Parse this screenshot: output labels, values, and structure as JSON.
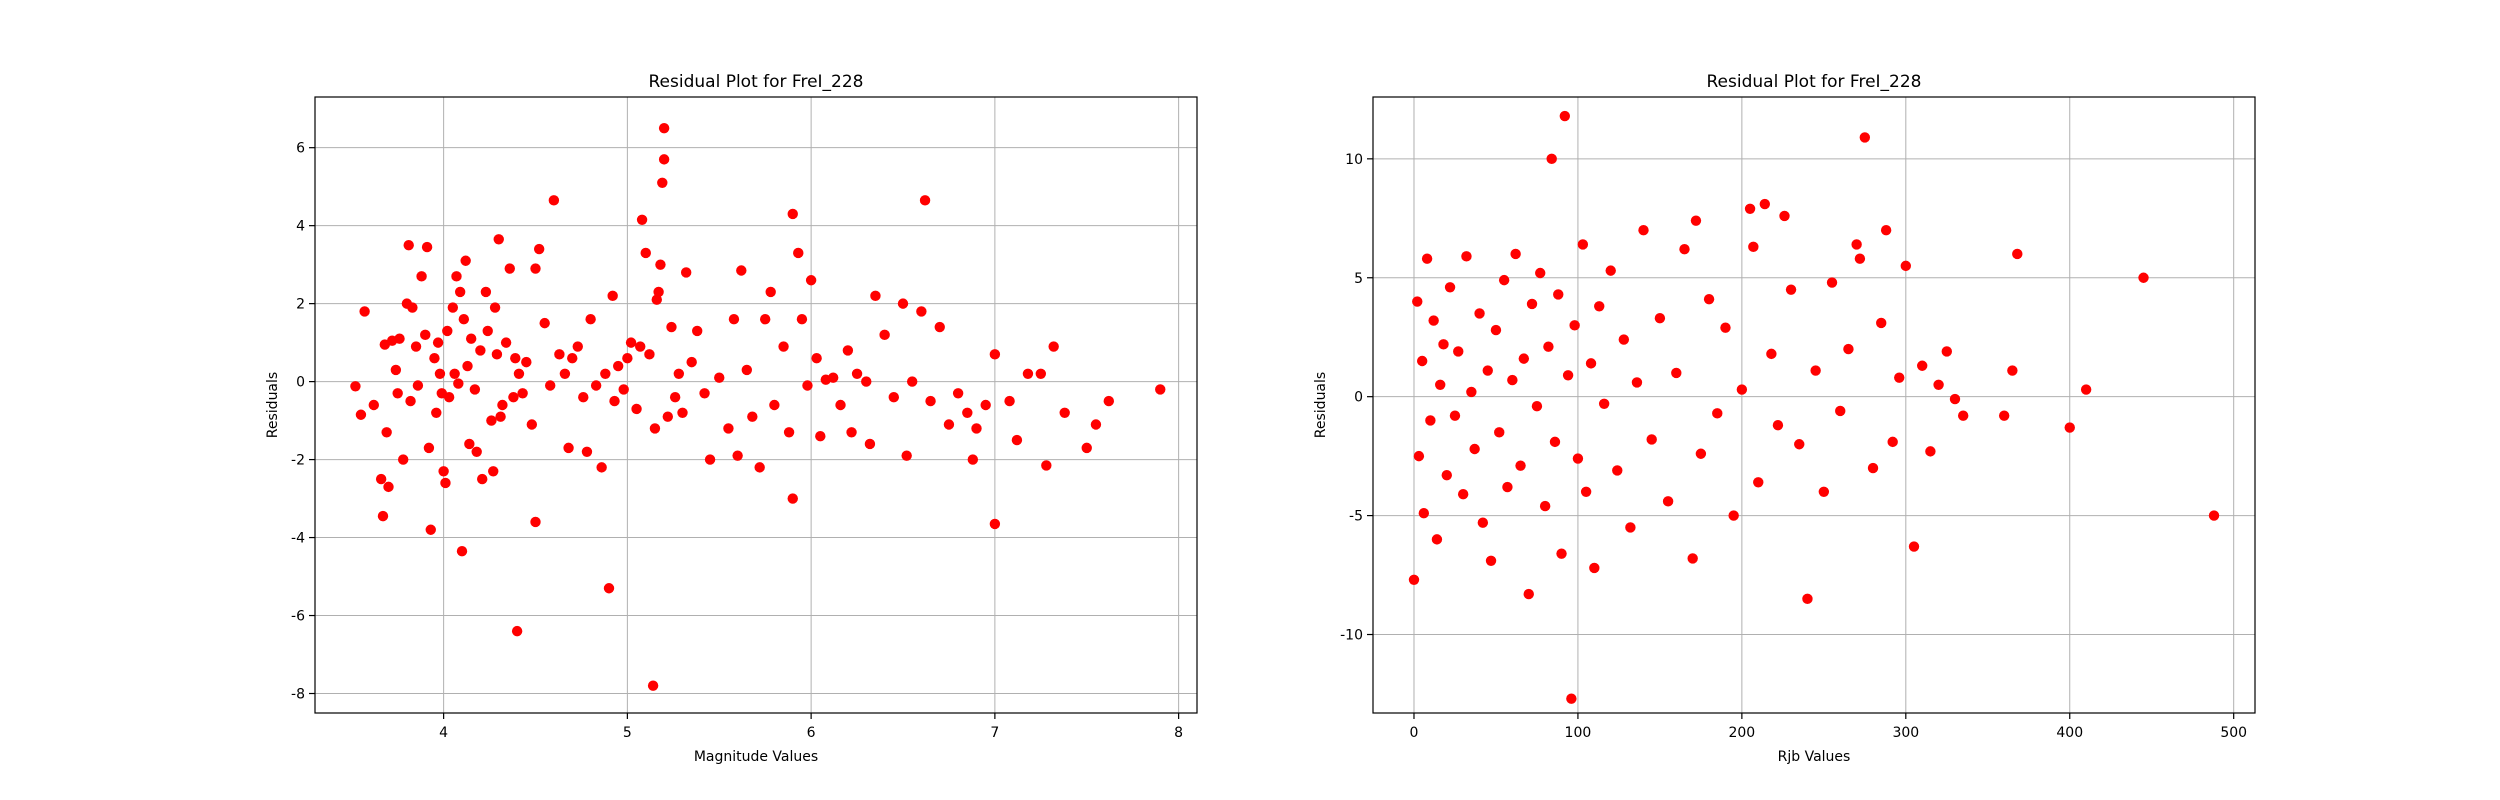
{
  "chart_data": [
    {
      "type": "scatter",
      "title": "Residual Plot for FreI_228",
      "xlabel": "Magnitude Values",
      "ylabel": "Residuals",
      "xlim": [
        3.3,
        8.1
      ],
      "ylim": [
        -8.5,
        7.3
      ],
      "xticks": [
        4,
        5,
        6,
        7,
        8
      ],
      "yticks": [
        -8,
        -6,
        -4,
        -2,
        0,
        2,
        4,
        6
      ],
      "grid": true,
      "color": "#ff0000",
      "points": [
        [
          3.52,
          -0.12
        ],
        [
          3.55,
          -0.85
        ],
        [
          3.57,
          1.8
        ],
        [
          3.62,
          -0.6
        ],
        [
          3.66,
          -2.5
        ],
        [
          3.67,
          -3.45
        ],
        [
          3.68,
          0.95
        ],
        [
          3.69,
          -1.3
        ],
        [
          3.7,
          -2.7
        ],
        [
          3.72,
          1.05
        ],
        [
          3.74,
          0.3
        ],
        [
          3.75,
          -0.3
        ],
        [
          3.76,
          1.1
        ],
        [
          3.78,
          -2.0
        ],
        [
          3.8,
          2.0
        ],
        [
          3.81,
          3.5
        ],
        [
          3.82,
          -0.5
        ],
        [
          3.83,
          1.9
        ],
        [
          3.85,
          0.9
        ],
        [
          3.86,
          -0.1
        ],
        [
          3.88,
          2.7
        ],
        [
          3.9,
          1.2
        ],
        [
          3.91,
          3.45
        ],
        [
          3.92,
          -1.7
        ],
        [
          3.93,
          -3.8
        ],
        [
          3.95,
          0.6
        ],
        [
          3.96,
          -0.8
        ],
        [
          3.97,
          1.0
        ],
        [
          3.98,
          0.2
        ],
        [
          3.99,
          -0.3
        ],
        [
          4.0,
          -2.3
        ],
        [
          4.01,
          -2.6
        ],
        [
          4.02,
          1.3
        ],
        [
          4.03,
          -0.4
        ],
        [
          4.05,
          1.9
        ],
        [
          4.06,
          0.2
        ],
        [
          4.07,
          2.7
        ],
        [
          4.08,
          -0.05
        ],
        [
          4.09,
          2.3
        ],
        [
          4.1,
          -4.35
        ],
        [
          4.11,
          1.6
        ],
        [
          4.12,
          3.1
        ],
        [
          4.13,
          0.4
        ],
        [
          4.14,
          -1.6
        ],
        [
          4.15,
          1.1
        ],
        [
          4.17,
          -0.2
        ],
        [
          4.18,
          -1.8
        ],
        [
          4.2,
          0.8
        ],
        [
          4.21,
          -2.5
        ],
        [
          4.23,
          2.3
        ],
        [
          4.24,
          1.3
        ],
        [
          4.26,
          -1.0
        ],
        [
          4.27,
          -2.3
        ],
        [
          4.28,
          1.9
        ],
        [
          4.29,
          0.7
        ],
        [
          4.3,
          3.65
        ],
        [
          4.31,
          -0.9
        ],
        [
          4.32,
          -0.6
        ],
        [
          4.34,
          1.0
        ],
        [
          4.36,
          2.9
        ],
        [
          4.38,
          -0.4
        ],
        [
          4.39,
          0.6
        ],
        [
          4.4,
          -6.4
        ],
        [
          4.41,
          0.2
        ],
        [
          4.43,
          -0.3
        ],
        [
          4.45,
          0.5
        ],
        [
          4.48,
          -1.1
        ],
        [
          4.5,
          2.9
        ],
        [
          4.5,
          -3.6
        ],
        [
          4.52,
          3.4
        ],
        [
          4.55,
          1.5
        ],
        [
          4.58,
          -0.1
        ],
        [
          4.6,
          4.65
        ],
        [
          4.63,
          0.7
        ],
        [
          4.66,
          0.2
        ],
        [
          4.68,
          -1.7
        ],
        [
          4.7,
          0.6
        ],
        [
          4.73,
          0.9
        ],
        [
          4.76,
          -0.4
        ],
        [
          4.78,
          -1.8
        ],
        [
          4.8,
          1.6
        ],
        [
          4.83,
          -0.1
        ],
        [
          4.86,
          -2.2
        ],
        [
          4.88,
          0.2
        ],
        [
          4.9,
          -5.3
        ],
        [
          4.92,
          2.2
        ],
        [
          4.93,
          -0.5
        ],
        [
          4.95,
          0.4
        ],
        [
          4.98,
          -0.2
        ],
        [
          5.0,
          0.6
        ],
        [
          5.02,
          1.0
        ],
        [
          5.05,
          -0.7
        ],
        [
          5.07,
          0.9
        ],
        [
          5.08,
          4.15
        ],
        [
          5.1,
          3.3
        ],
        [
          5.12,
          0.7
        ],
        [
          5.14,
          -7.8
        ],
        [
          5.15,
          -1.2
        ],
        [
          5.16,
          2.1
        ],
        [
          5.17,
          2.3
        ],
        [
          5.18,
          3.0
        ],
        [
          5.19,
          5.1
        ],
        [
          5.2,
          5.7
        ],
        [
          5.2,
          6.5
        ],
        [
          5.22,
          -0.9
        ],
        [
          5.24,
          1.4
        ],
        [
          5.26,
          -0.4
        ],
        [
          5.28,
          0.2
        ],
        [
          5.3,
          -0.8
        ],
        [
          5.32,
          2.8
        ],
        [
          5.35,
          0.5
        ],
        [
          5.38,
          1.3
        ],
        [
          5.42,
          -0.3
        ],
        [
          5.45,
          -2.0
        ],
        [
          5.5,
          0.1
        ],
        [
          5.55,
          -1.2
        ],
        [
          5.58,
          1.6
        ],
        [
          5.6,
          -1.9
        ],
        [
          5.62,
          2.85
        ],
        [
          5.65,
          0.3
        ],
        [
          5.68,
          -0.9
        ],
        [
          5.72,
          -2.2
        ],
        [
          5.75,
          1.6
        ],
        [
          5.78,
          2.3
        ],
        [
          5.8,
          -0.6
        ],
        [
          5.85,
          0.9
        ],
        [
          5.88,
          -1.3
        ],
        [
          5.9,
          4.3
        ],
        [
          5.9,
          -3.0
        ],
        [
          5.93,
          3.3
        ],
        [
          5.95,
          1.6
        ],
        [
          5.98,
          -0.1
        ],
        [
          6.0,
          2.6
        ],
        [
          6.03,
          0.6
        ],
        [
          6.05,
          -1.4
        ],
        [
          6.08,
          0.05
        ],
        [
          6.12,
          0.1
        ],
        [
          6.16,
          -0.6
        ],
        [
          6.2,
          0.8
        ],
        [
          6.22,
          -1.3
        ],
        [
          6.25,
          0.2
        ],
        [
          6.3,
          0.0
        ],
        [
          6.32,
          -1.6
        ],
        [
          6.35,
          2.2
        ],
        [
          6.4,
          1.2
        ],
        [
          6.45,
          -0.4
        ],
        [
          6.5,
          2.0
        ],
        [
          6.52,
          -1.9
        ],
        [
          6.55,
          0.0
        ],
        [
          6.6,
          1.8
        ],
        [
          6.62,
          4.65
        ],
        [
          6.65,
          -0.5
        ],
        [
          6.7,
          1.4
        ],
        [
          6.75,
          -1.1
        ],
        [
          6.8,
          -0.3
        ],
        [
          6.85,
          -0.8
        ],
        [
          6.88,
          -2.0
        ],
        [
          6.9,
          -1.2
        ],
        [
          6.95,
          -0.6
        ],
        [
          7.0,
          0.7
        ],
        [
          7.0,
          -3.65
        ],
        [
          7.08,
          -0.5
        ],
        [
          7.12,
          -1.5
        ],
        [
          7.18,
          0.2
        ],
        [
          7.25,
          0.2
        ],
        [
          7.28,
          -2.15
        ],
        [
          7.32,
          0.9
        ],
        [
          7.38,
          -0.8
        ],
        [
          7.5,
          -1.7
        ],
        [
          7.55,
          -1.1
        ],
        [
          7.62,
          -0.5
        ],
        [
          7.9,
          -0.2
        ]
      ]
    },
    {
      "type": "scatter",
      "title": "Residual Plot for FreI_228",
      "xlabel": "Rjb Values",
      "ylabel": "Residuals",
      "xlim": [
        -25,
        513
      ],
      "ylim": [
        -13.3,
        12.6
      ],
      "xticks": [
        0,
        100,
        200,
        300,
        400,
        500
      ],
      "yticks": [
        -10,
        -5,
        0,
        5,
        10
      ],
      "grid": true,
      "color": "#ff0000",
      "points": [
        [
          0,
          -7.7
        ],
        [
          2,
          4.0
        ],
        [
          3,
          -2.5
        ],
        [
          5,
          1.5
        ],
        [
          6,
          -4.9
        ],
        [
          8,
          5.8
        ],
        [
          10,
          -1.0
        ],
        [
          12,
          3.2
        ],
        [
          14,
          -6.0
        ],
        [
          16,
          0.5
        ],
        [
          18,
          2.2
        ],
        [
          20,
          -3.3
        ],
        [
          22,
          4.6
        ],
        [
          25,
          -0.8
        ],
        [
          27,
          1.9
        ],
        [
          30,
          -4.1
        ],
        [
          32,
          5.9
        ],
        [
          35,
          0.2
        ],
        [
          37,
          -2.2
        ],
        [
          40,
          3.5
        ],
        [
          42,
          -5.3
        ],
        [
          45,
          1.1
        ],
        [
          47,
          -6.9
        ],
        [
          50,
          2.8
        ],
        [
          52,
          -1.5
        ],
        [
          55,
          4.9
        ],
        [
          57,
          -3.8
        ],
        [
          60,
          0.7
        ],
        [
          62,
          6.0
        ],
        [
          65,
          -2.9
        ],
        [
          67,
          1.6
        ],
        [
          70,
          -8.3
        ],
        [
          72,
          3.9
        ],
        [
          75,
          -0.4
        ],
        [
          77,
          5.2
        ],
        [
          80,
          -4.6
        ],
        [
          82,
          2.1
        ],
        [
          84,
          10.0
        ],
        [
          86,
          -1.9
        ],
        [
          88,
          4.3
        ],
        [
          90,
          -6.6
        ],
        [
          92,
          11.8
        ],
        [
          94,
          0.9
        ],
        [
          96,
          -12.7
        ],
        [
          98,
          3.0
        ],
        [
          100,
          -2.6
        ],
        [
          103,
          6.4
        ],
        [
          105,
          -4.0
        ],
        [
          108,
          1.4
        ],
        [
          110,
          -7.2
        ],
        [
          113,
          3.8
        ],
        [
          116,
          -0.3
        ],
        [
          120,
          5.3
        ],
        [
          124,
          -3.1
        ],
        [
          128,
          2.4
        ],
        [
          132,
          -5.5
        ],
        [
          136,
          0.6
        ],
        [
          140,
          7.0
        ],
        [
          145,
          -1.8
        ],
        [
          150,
          3.3
        ],
        [
          155,
          -4.4
        ],
        [
          160,
          1.0
        ],
        [
          165,
          6.2
        ],
        [
          170,
          -6.8
        ],
        [
          172,
          7.4
        ],
        [
          175,
          -2.4
        ],
        [
          180,
          4.1
        ],
        [
          185,
          -0.7
        ],
        [
          190,
          2.9
        ],
        [
          195,
          -5.0
        ],
        [
          200,
          0.3
        ],
        [
          205,
          7.9
        ],
        [
          207,
          6.3
        ],
        [
          210,
          -3.6
        ],
        [
          214,
          8.1
        ],
        [
          218,
          1.8
        ],
        [
          222,
          -1.2
        ],
        [
          226,
          7.6
        ],
        [
          230,
          4.5
        ],
        [
          235,
          -2.0
        ],
        [
          240,
          -8.5
        ],
        [
          245,
          1.1
        ],
        [
          250,
          -4.0
        ],
        [
          255,
          4.8
        ],
        [
          260,
          -0.6
        ],
        [
          265,
          2.0
        ],
        [
          270,
          6.4
        ],
        [
          272,
          5.8
        ],
        [
          275,
          10.9
        ],
        [
          280,
          -3.0
        ],
        [
          285,
          3.1
        ],
        [
          288,
          7.0
        ],
        [
          292,
          -1.9
        ],
        [
          296,
          0.8
        ],
        [
          300,
          5.5
        ],
        [
          305,
          -6.3
        ],
        [
          310,
          1.3
        ],
        [
          315,
          -2.3
        ],
        [
          320,
          0.5
        ],
        [
          325,
          1.9
        ],
        [
          330,
          -0.1
        ],
        [
          335,
          -0.8
        ],
        [
          360,
          -0.8
        ],
        [
          365,
          1.1
        ],
        [
          368,
          6.0
        ],
        [
          400,
          -1.3
        ],
        [
          410,
          0.3
        ],
        [
          445,
          5.0
        ],
        [
          488,
          -5.0
        ]
      ]
    }
  ]
}
